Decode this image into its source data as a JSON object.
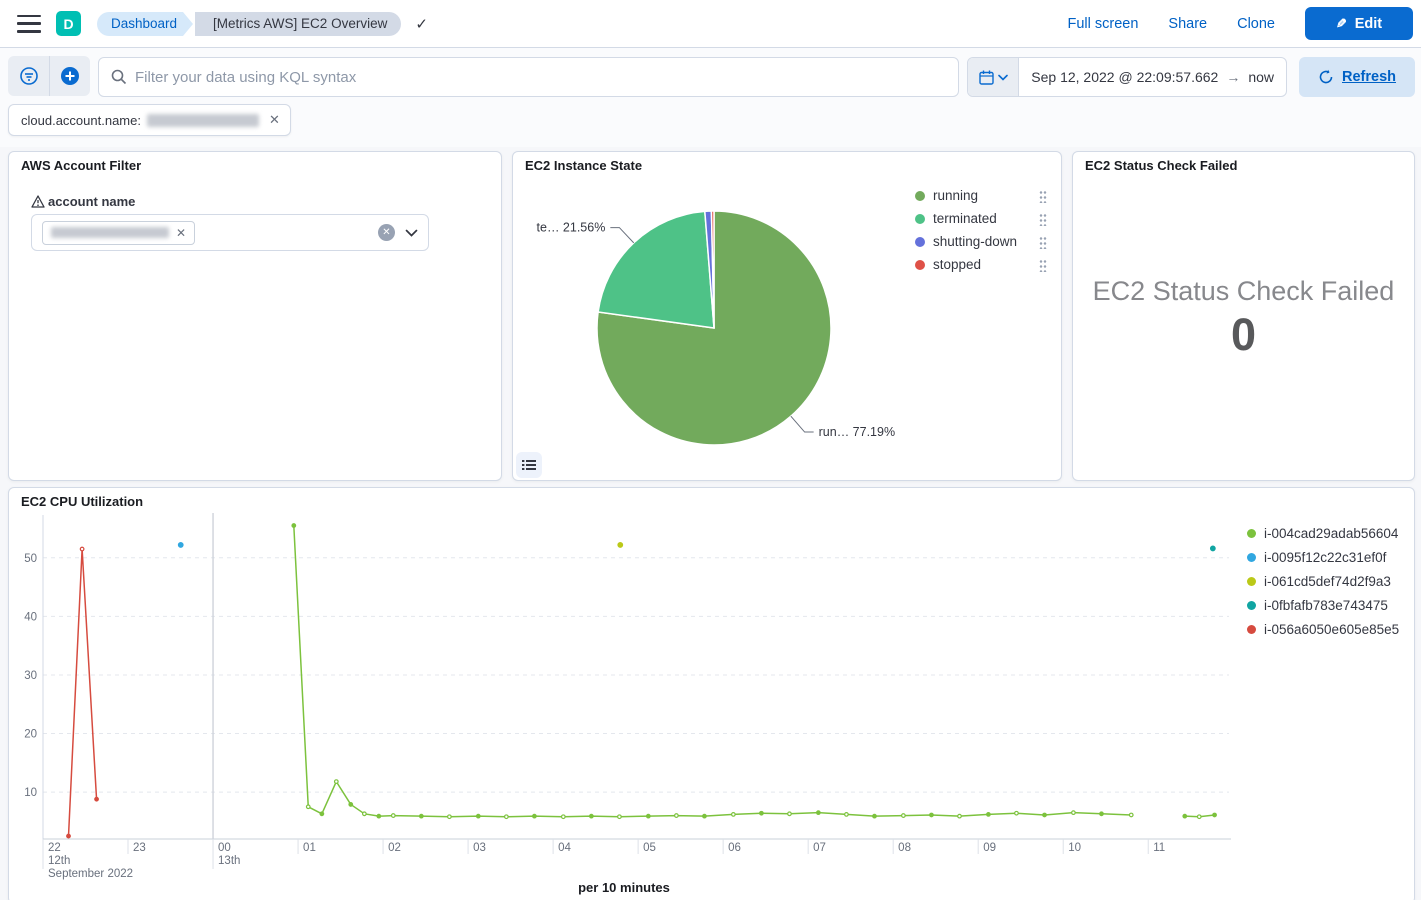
{
  "chrome": {
    "space_initial": "D",
    "breadcrumbs": [
      {
        "label": "Dashboard"
      },
      {
        "label": "[Metrics AWS] EC2 Overview"
      }
    ],
    "actions": {
      "full_screen": "Full screen",
      "share": "Share",
      "clone": "Clone",
      "edit": "Edit"
    }
  },
  "query_bar": {
    "placeholder": "Filter your data using KQL syntax",
    "time_start": "Sep 12, 2022 @ 22:09:57.662",
    "time_arrow": "→",
    "time_end": "now",
    "refresh": "Refresh"
  },
  "filters": {
    "pill_field": "cloud.account.name:",
    "pill_value_redacted": true
  },
  "panels": {
    "account_filter": {
      "title": "AWS Account Filter",
      "control_label": "account name"
    },
    "instance_state": {
      "title": "EC2 Instance State"
    },
    "status_check": {
      "title": "EC2 Status Check Failed",
      "metric_label": "EC2 Status Check Failed",
      "metric_value": "0"
    },
    "cpu": {
      "title": "EC2 CPU Utilization",
      "xlabel": "per 10 minutes"
    }
  },
  "chart_data": [
    {
      "type": "pie",
      "title": "EC2 Instance State",
      "legend_position": "right",
      "slices": [
        {
          "label": "running",
          "value": 77.19,
          "color": "#72AA5C",
          "callout_label": "run…",
          "callout_pct": "77.19%"
        },
        {
          "label": "terminated",
          "value": 21.56,
          "color": "#4EC287",
          "callout_label": "te…",
          "callout_pct": "21.56%"
        },
        {
          "label": "shutting-down",
          "value": 0.9,
          "color": "#6471DB"
        },
        {
          "label": "stopped",
          "value": 0.35,
          "color": "#DF5147"
        }
      ]
    },
    {
      "type": "line",
      "title": "EC2 CPU Utilization",
      "xlabel": "per 10 minutes",
      "x_unit": "hour of day (Sep 12 22:00 - Sep 13 11:57)",
      "xlim": [
        22,
        35.95
      ],
      "ylim": [
        2,
        55.6
      ],
      "yticks": [
        10,
        20,
        30,
        40,
        50
      ],
      "xticks": [
        {
          "h": 22,
          "label": "22",
          "sub": "12th",
          "sub2": "September 2022"
        },
        {
          "h": 23,
          "label": "23"
        },
        {
          "h": 24,
          "label": "00",
          "sub": "13th"
        },
        {
          "h": 25,
          "label": "01"
        },
        {
          "h": 26,
          "label": "02"
        },
        {
          "h": 27,
          "label": "03"
        },
        {
          "h": 28,
          "label": "04"
        },
        {
          "h": 29,
          "label": "05"
        },
        {
          "h": 30,
          "label": "06"
        },
        {
          "h": 31,
          "label": "07"
        },
        {
          "h": 32,
          "label": "08"
        },
        {
          "h": 33,
          "label": "09"
        },
        {
          "h": 34,
          "label": "10"
        },
        {
          "h": 35,
          "label": "11"
        }
      ],
      "day_boundary_hour": 24,
      "grid": "dashed-horizontal",
      "legend_position": "right",
      "series": [
        {
          "name": "i-004cad29adab56604",
          "color": "#7CC23D",
          "segments": [
            [
              [
                24.95,
                55.5
              ],
              [
                25.12,
                7.5
              ],
              [
                25.28,
                6.3
              ],
              [
                25.45,
                11.8
              ],
              [
                25.62,
                7.9
              ],
              [
                25.78,
                6.3
              ],
              [
                25.95,
                5.9
              ],
              [
                26.12,
                6.0
              ],
              [
                26.45,
                5.9
              ],
              [
                26.78,
                5.8
              ],
              [
                27.12,
                5.9
              ],
              [
                27.45,
                5.8
              ],
              [
                27.78,
                5.9
              ],
              [
                28.12,
                5.8
              ],
              [
                28.45,
                5.9
              ],
              [
                28.78,
                5.8
              ],
              [
                29.12,
                5.9
              ],
              [
                29.45,
                6.0
              ],
              [
                29.78,
                5.9
              ],
              [
                30.12,
                6.2
              ],
              [
                30.45,
                6.4
              ],
              [
                30.78,
                6.3
              ],
              [
                31.12,
                6.5
              ],
              [
                31.45,
                6.2
              ],
              [
                31.78,
                5.9
              ],
              [
                32.12,
                6.0
              ],
              [
                32.45,
                6.1
              ],
              [
                32.78,
                5.9
              ],
              [
                33.12,
                6.2
              ],
              [
                33.45,
                6.4
              ],
              [
                33.78,
                6.1
              ],
              [
                34.12,
                6.5
              ],
              [
                34.45,
                6.3
              ],
              [
                34.8,
                6.1
              ]
            ],
            [
              [
                35.43,
                5.9
              ],
              [
                35.6,
                5.8
              ],
              [
                35.78,
                6.1
              ]
            ]
          ]
        },
        {
          "name": "i-0095f12c22c31ef0f",
          "color": "#31A7E0",
          "segments": [
            [
              [
                23.62,
                52.2
              ]
            ]
          ]
        },
        {
          "name": "i-061cd5def74d2f9a3",
          "color": "#BBC918",
          "segments": [
            [
              [
                28.79,
                52.2
              ]
            ]
          ]
        },
        {
          "name": "i-0fbfafb783e743475",
          "color": "#11A5A2",
          "segments": [
            [
              [
                35.76,
                51.6
              ]
            ]
          ]
        },
        {
          "name": "i-056a6050e605e85e5",
          "color": "#D64B3F",
          "segments": [
            [
              [
                22.3,
                2.5
              ],
              [
                22.46,
                51.5
              ],
              [
                22.63,
                8.8
              ]
            ]
          ]
        }
      ]
    }
  ]
}
